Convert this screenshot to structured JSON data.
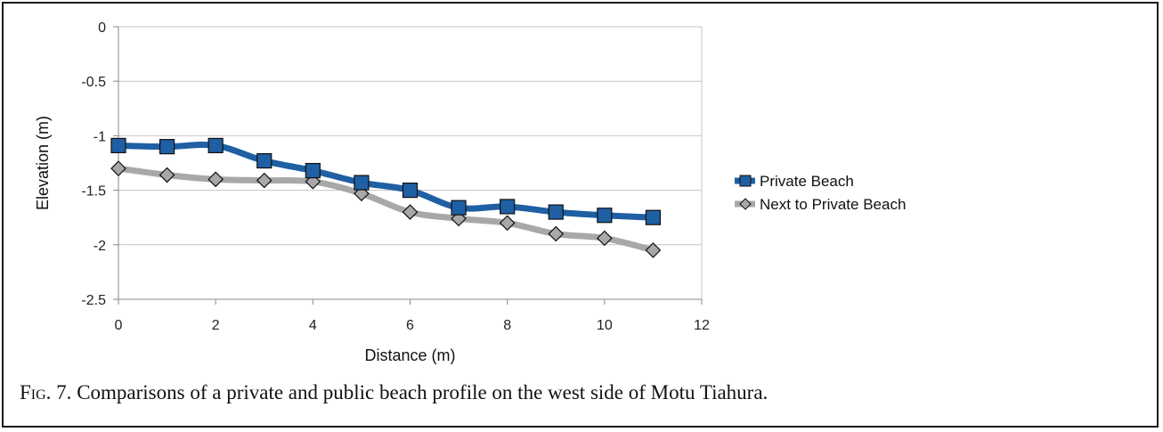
{
  "caption": {
    "prefix": "Fig. 7.",
    "text": " Comparisons of a private and public beach profile on the west side of Motu Tiahura."
  },
  "chart_data": {
    "type": "line",
    "title": "",
    "xlabel": "Distance (m)",
    "ylabel": "Elevation (m)",
    "xlim": [
      0,
      12
    ],
    "ylim": [
      -2.5,
      0
    ],
    "xticks": [
      0,
      2,
      4,
      6,
      8,
      10,
      12
    ],
    "yticks": [
      0,
      -0.5,
      -1,
      -1.5,
      -2,
      -2.5
    ],
    "ytick_labels": [
      "0",
      "-0.5",
      "-1",
      "-1.5",
      "-2",
      "-2.5"
    ],
    "grid": true,
    "legend_position": "right",
    "series": [
      {
        "name": "Private Beach",
        "color": "#1f5fa3",
        "marker": "square",
        "x": [
          0,
          1,
          2,
          3,
          4,
          5,
          6,
          7,
          8,
          9,
          10,
          11
        ],
        "y": [
          -1.09,
          -1.1,
          -1.09,
          -1.23,
          -1.32,
          -1.43,
          -1.5,
          -1.66,
          -1.65,
          -1.7,
          -1.73,
          -1.75
        ]
      },
      {
        "name": "Next to Private Beach",
        "color": "#a8a8a8",
        "marker": "diamond",
        "x": [
          0,
          1,
          2,
          3,
          4,
          5,
          6,
          7,
          8,
          9,
          10,
          11
        ],
        "y": [
          -1.3,
          -1.36,
          -1.4,
          -1.41,
          -1.42,
          -1.53,
          -1.7,
          -1.76,
          -1.8,
          -1.9,
          -1.94,
          -2.05
        ]
      }
    ]
  }
}
